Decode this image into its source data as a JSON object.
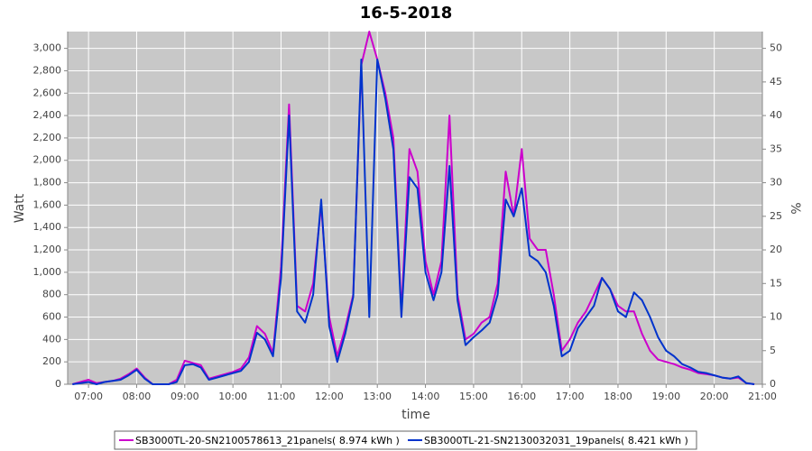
{
  "chart_data": {
    "type": "line",
    "title": "16-5-2018",
    "x_label": "time",
    "y_label": "Watt",
    "y2_label": "%",
    "x": [
      "06:40",
      "06:50",
      "07:00",
      "07:10",
      "07:20",
      "07:30",
      "07:40",
      "07:50",
      "08:00",
      "08:10",
      "08:20",
      "08:30",
      "08:40",
      "08:50",
      "09:00",
      "09:10",
      "09:20",
      "09:30",
      "09:40",
      "09:50",
      "10:00",
      "10:10",
      "10:20",
      "10:30",
      "10:40",
      "10:50",
      "11:00",
      "11:10",
      "11:20",
      "11:30",
      "11:40",
      "11:50",
      "12:00",
      "12:10",
      "12:20",
      "12:30",
      "12:40",
      "12:50",
      "13:00",
      "13:10",
      "13:20",
      "13:30",
      "13:40",
      "13:50",
      "14:00",
      "14:10",
      "14:20",
      "14:30",
      "14:40",
      "14:50",
      "15:00",
      "15:10",
      "15:20",
      "15:30",
      "15:40",
      "15:50",
      "16:00",
      "16:10",
      "16:20",
      "16:30",
      "16:40",
      "16:50",
      "17:00",
      "17:10",
      "17:20",
      "17:30",
      "17:40",
      "17:50",
      "18:00",
      "18:10",
      "18:20",
      "18:30",
      "18:40",
      "18:50",
      "19:00",
      "19:10",
      "19:20",
      "19:30",
      "19:40",
      "19:50",
      "20:00",
      "20:10",
      "20:20",
      "20:30",
      "20:40",
      "20:50"
    ],
    "series": [
      {
        "name": "SB3000TL-20-SN2100578613_21panels( 8.974 kWh )",
        "color": "#cc00cc",
        "values": [
          0,
          20,
          40,
          10,
          20,
          30,
          50,
          90,
          140,
          60,
          0,
          0,
          0,
          40,
          210,
          190,
          170,
          50,
          70,
          90,
          110,
          140,
          240,
          520,
          450,
          280,
          1050,
          2500,
          700,
          650,
          900,
          1600,
          600,
          250,
          500,
          800,
          2850,
          3150,
          2900,
          2600,
          2200,
          650,
          2100,
          1900,
          1100,
          800,
          1100,
          2400,
          800,
          400,
          450,
          550,
          600,
          900,
          1900,
          1500,
          2100,
          1300,
          1200,
          1200,
          800,
          300,
          400,
          550,
          650,
          800,
          950,
          850,
          700,
          650,
          650,
          450,
          300,
          220,
          200,
          180,
          150,
          130,
          100,
          90,
          80,
          60,
          50,
          60,
          10,
          0
        ]
      },
      {
        "name": "SB3000TL-21-SN2130032031_19panels( 8.421 kWh )",
        "color": "#0033cc",
        "values": [
          0,
          10,
          20,
          0,
          20,
          30,
          40,
          80,
          130,
          50,
          0,
          0,
          0,
          20,
          170,
          180,
          150,
          40,
          60,
          80,
          100,
          120,
          200,
          460,
          400,
          250,
          950,
          2400,
          650,
          550,
          800,
          1650,
          520,
          200,
          450,
          780,
          2900,
          600,
          2900,
          2550,
          2100,
          600,
          1850,
          1750,
          1000,
          750,
          1000,
          1950,
          750,
          350,
          420,
          480,
          550,
          800,
          1650,
          1500,
          1750,
          1150,
          1100,
          1000,
          700,
          250,
          300,
          500,
          600,
          700,
          950,
          850,
          650,
          600,
          820,
          750,
          600,
          420,
          300,
          250,
          180,
          150,
          110,
          100,
          80,
          60,
          50,
          70,
          10,
          0
        ]
      }
    ],
    "xlim": [
      "06:34",
      "21:00"
    ],
    "xticks": [
      "07:00",
      "08:00",
      "09:00",
      "10:00",
      "11:00",
      "12:00",
      "13:00",
      "14:00",
      "15:00",
      "16:00",
      "17:00",
      "18:00",
      "19:00",
      "20:00",
      "21:00"
    ],
    "ylim": [
      0,
      3150
    ],
    "yticks": [
      0,
      200,
      400,
      600,
      800,
      {
        "value": 1000,
        "label": "1,000"
      },
      {
        "value": 1200,
        "label": "1,200"
      },
      {
        "value": 1400,
        "label": "1,400"
      },
      {
        "value": 1600,
        "label": "1,600"
      },
      {
        "value": 1800,
        "label": "1,800"
      },
      {
        "value": 2000,
        "label": "2,000"
      },
      {
        "value": 2200,
        "label": "2,200"
      },
      {
        "value": 2400,
        "label": "2,400"
      },
      {
        "value": 2600,
        "label": "2,600"
      },
      {
        "value": 2800,
        "label": "2,800"
      },
      {
        "value": 3000,
        "label": "3,000"
      }
    ],
    "y2lim": [
      0,
      52.5
    ],
    "y2ticks": [
      0,
      5,
      10,
      15,
      20,
      25,
      30,
      35,
      40,
      45,
      50
    ],
    "grid": true
  }
}
